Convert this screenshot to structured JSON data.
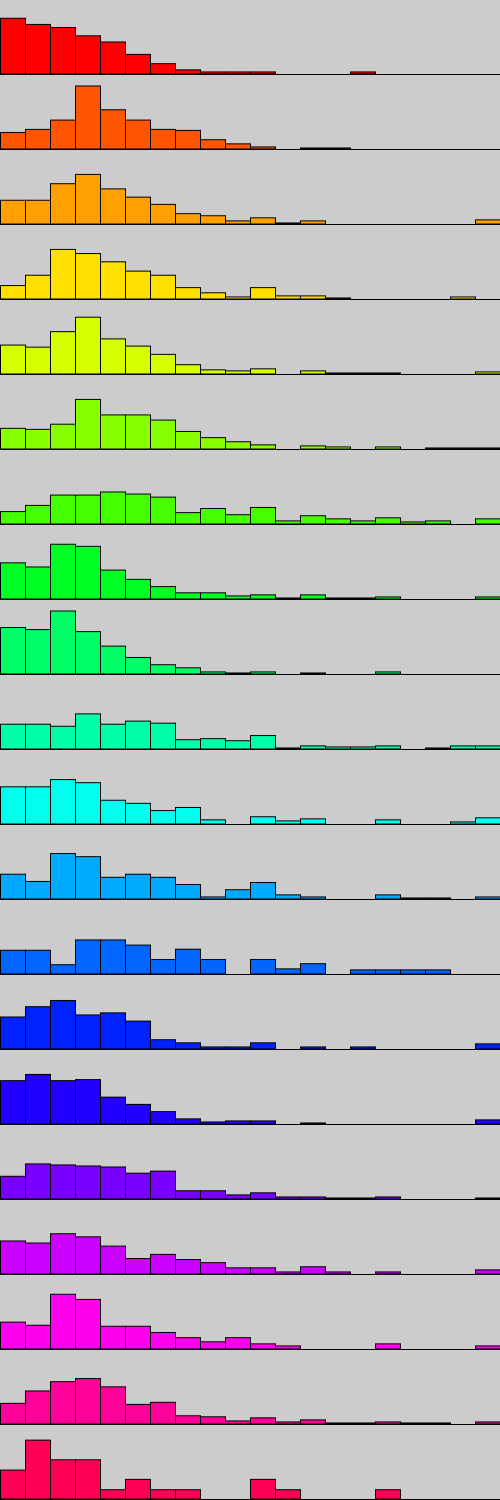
{
  "chart_data": [
    {
      "type": "bar",
      "color": "#ff0000",
      "values": [
        54,
        48,
        45,
        37,
        31,
        19,
        10,
        4,
        2,
        2,
        2,
        0,
        0,
        0,
        2,
        0,
        0,
        0,
        0,
        0
      ]
    },
    {
      "type": "bar",
      "color": "#ff5500",
      "values": [
        16,
        19,
        28,
        61,
        38,
        28,
        19,
        18,
        9,
        5,
        2,
        0,
        1,
        1,
        0,
        0,
        0,
        0,
        0,
        0
      ]
    },
    {
      "type": "bar",
      "color": "#ffa000",
      "values": [
        23,
        23,
        39,
        48,
        34,
        26,
        19,
        10,
        8,
        3,
        6,
        1,
        3,
        0,
        0,
        0,
        0,
        0,
        0,
        4
      ]
    },
    {
      "type": "bar",
      "color": "#ffe000",
      "values": [
        13,
        23,
        48,
        44,
        36,
        27,
        23,
        11,
        6,
        2,
        11,
        3,
        3,
        1,
        0,
        0,
        0,
        0,
        2,
        0
      ]
    },
    {
      "type": "bar",
      "color": "#d4ff00",
      "values": [
        28,
        26,
        41,
        55,
        34,
        27,
        19,
        9,
        4,
        3,
        5,
        0,
        3,
        1,
        1,
        1,
        0,
        0,
        0,
        2
      ]
    },
    {
      "type": "bar",
      "color": "#88ff00",
      "values": [
        20,
        19,
        24,
        48,
        33,
        33,
        28,
        17,
        11,
        7,
        4,
        0,
        3,
        2,
        0,
        2,
        0,
        1,
        1,
        1
      ]
    },
    {
      "type": "bar",
      "color": "#44ff00",
      "values": [
        12,
        18,
        28,
        28,
        31,
        29,
        26,
        11,
        15,
        9,
        16,
        3,
        8,
        5,
        3,
        6,
        2,
        3,
        0,
        5
      ]
    },
    {
      "type": "bar",
      "color": "#00ff22",
      "values": [
        35,
        31,
        53,
        51,
        28,
        19,
        12,
        6,
        6,
        3,
        4,
        1,
        4,
        1,
        1,
        2,
        0,
        0,
        0,
        2
      ]
    },
    {
      "type": "bar",
      "color": "#00ff66",
      "values": [
        45,
        43,
        61,
        41,
        27,
        16,
        9,
        6,
        2,
        1,
        2,
        0,
        1,
        0,
        0,
        2,
        0,
        0,
        0,
        0
      ]
    },
    {
      "type": "bar",
      "color": "#00ffaa",
      "values": [
        24,
        24,
        22,
        34,
        24,
        27,
        25,
        9,
        10,
        8,
        13,
        1,
        3,
        2,
        2,
        3,
        0,
        1,
        3,
        3
      ]
    },
    {
      "type": "bar",
      "color": "#00ffee",
      "values": [
        36,
        36,
        43,
        40,
        23,
        20,
        13,
        16,
        4,
        0,
        7,
        3,
        5,
        0,
        0,
        4,
        0,
        0,
        2,
        6
      ]
    },
    {
      "type": "bar",
      "color": "#00aaff",
      "values": [
        24,
        17,
        44,
        41,
        21,
        24,
        21,
        14,
        2,
        9,
        16,
        4,
        2,
        0,
        0,
        4,
        1,
        1,
        0,
        2
      ]
    },
    {
      "type": "bar",
      "color": "#0066ff",
      "values": [
        23,
        23,
        9,
        33,
        33,
        28,
        14,
        24,
        14,
        0,
        14,
        5,
        10,
        0,
        4,
        4,
        4,
        4,
        0,
        0
      ]
    },
    {
      "type": "bar",
      "color": "#0022ff",
      "values": [
        31,
        41,
        47,
        33,
        35,
        27,
        9,
        6,
        2,
        2,
        6,
        0,
        2,
        0,
        2,
        0,
        0,
        0,
        0,
        5
      ]
    },
    {
      "type": "bar",
      "color": "#2200ff",
      "values": [
        42,
        48,
        42,
        43,
        26,
        19,
        12,
        5,
        2,
        3,
        3,
        0,
        1,
        0,
        0,
        0,
        0,
        0,
        0,
        4
      ]
    },
    {
      "type": "bar",
      "color": "#7700ff",
      "values": [
        22,
        34,
        33,
        32,
        31,
        25,
        27,
        8,
        8,
        4,
        6,
        2,
        2,
        1,
        1,
        2,
        0,
        0,
        0,
        1
      ]
    },
    {
      "type": "bar",
      "color": "#cc00ff",
      "values": [
        32,
        30,
        39,
        36,
        27,
        15,
        19,
        14,
        11,
        6,
        6,
        2,
        7,
        2,
        0,
        2,
        0,
        0,
        0,
        4
      ]
    },
    {
      "type": "bar",
      "color": "#ff00ee",
      "values": [
        26,
        23,
        53,
        48,
        22,
        22,
        16,
        11,
        7,
        11,
        5,
        3,
        0,
        0,
        0,
        5,
        0,
        0,
        0,
        3
      ]
    },
    {
      "type": "bar",
      "color": "#ff0099",
      "values": [
        20,
        32,
        41,
        44,
        36,
        19,
        21,
        8,
        7,
        3,
        6,
        2,
        4,
        1,
        1,
        2,
        1,
        1,
        0,
        2
      ]
    },
    {
      "type": "bar",
      "color": "#ff0055",
      "values": [
        28,
        57,
        38,
        38,
        9,
        19,
        9,
        9,
        0,
        0,
        19,
        9,
        0,
        0,
        0,
        9,
        0,
        0,
        0,
        0
      ]
    }
  ]
}
